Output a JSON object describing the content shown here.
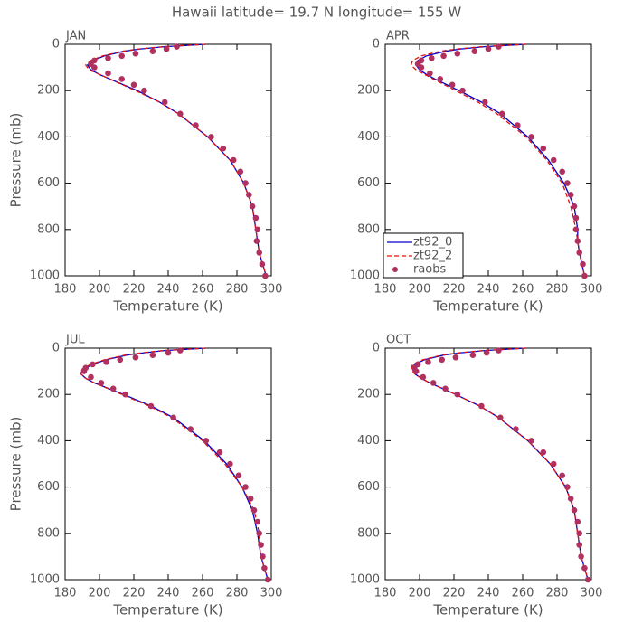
{
  "title": "Hawaii  latitude= 19.7 N longitude= 155 W",
  "chart_data": [
    {
      "type": "line",
      "label": "JAN",
      "x_label": "Temperature (K)",
      "y_label": "Pressure (mb)",
      "xlim": [
        180,
        300
      ],
      "xticks": [
        180,
        200,
        220,
        240,
        260,
        280,
        300
      ],
      "ylim": [
        1000,
        0
      ],
      "yticks": [
        0,
        200,
        400,
        600,
        800,
        1000
      ],
      "series": [
        {
          "color": "#0000c8",
          "line_style": "solid",
          "x": [
            262,
            250,
            238,
            224,
            214,
            203,
            196,
            193,
            195,
            200,
            206,
            222,
            235,
            246,
            263,
            276,
            284,
            289,
            291,
            292,
            293,
            297
          ],
          "y": [
            0,
            5,
            10,
            20,
            30,
            50,
            70,
            90,
            110,
            130,
            150,
            200,
            250,
            300,
            400,
            500,
            600,
            700,
            800,
            850,
            900,
            1000
          ]
        },
        {
          "color": "#e01010",
          "line_style": "dashed",
          "x": [
            262,
            249,
            237,
            223,
            213,
            202,
            195,
            192,
            194,
            200,
            206,
            221,
            235,
            246,
            263,
            276,
            284,
            289,
            291,
            292,
            293,
            297
          ],
          "y": [
            0,
            5,
            10,
            20,
            30,
            50,
            70,
            90,
            110,
            130,
            150,
            200,
            250,
            300,
            400,
            500,
            600,
            700,
            800,
            850,
            900,
            1000
          ]
        },
        {
          "color": "#b03060",
          "line_style": "markers",
          "x": [
            245,
            239,
            231,
            221,
            213,
            205,
            197,
            195,
            197,
            205,
            213,
            220,
            226,
            238,
            247,
            256,
            265,
            272,
            278,
            282,
            285,
            287,
            289,
            291,
            292,
            291.5,
            293,
            294.7,
            296.5
          ],
          "y": [
            10,
            20,
            30,
            40,
            50,
            60,
            70,
            85,
            100,
            125,
            150,
            175,
            200,
            250,
            300,
            350,
            400,
            450,
            500,
            550,
            600,
            650,
            700,
            750,
            800,
            850,
            900,
            950,
            1000
          ]
        }
      ]
    },
    {
      "type": "line",
      "label": "APR",
      "x_label": "Temperature (K)",
      "legend": "lower left",
      "xlim": [
        180,
        300
      ],
      "xticks": [
        180,
        200,
        220,
        240,
        260,
        280,
        300
      ],
      "ylim": [
        1000,
        0
      ],
      "yticks": [
        0,
        200,
        400,
        600,
        800,
        1000
      ],
      "series": [
        {
          "name": "zt92_0",
          "color": "#0000c8",
          "line_style": "solid",
          "x": [
            262,
            250,
            238,
            224,
            215,
            204,
            199,
            198,
            200,
            204,
            209,
            223,
            236,
            247,
            263,
            275,
            284,
            290,
            292,
            292,
            293,
            296
          ],
          "y": [
            0,
            5,
            10,
            20,
            30,
            50,
            70,
            90,
            110,
            130,
            150,
            200,
            250,
            300,
            400,
            500,
            600,
            700,
            800,
            850,
            900,
            1000
          ]
        },
        {
          "name": "zt92_2",
          "color": "#e01010",
          "line_style": "dashed",
          "x": [
            262,
            249,
            236,
            222,
            212,
            201,
            196,
            195,
            198,
            203,
            208,
            221,
            234,
            245,
            262,
            274,
            283,
            288,
            291,
            292,
            293,
            296
          ],
          "y": [
            0,
            5,
            10,
            20,
            30,
            50,
            70,
            90,
            110,
            130,
            150,
            200,
            250,
            300,
            400,
            500,
            600,
            700,
            800,
            850,
            900,
            1000
          ]
        },
        {
          "name": "raobs",
          "color": "#b03060",
          "line_style": "markers",
          "x": [
            246,
            240,
            232,
            222,
            214,
            207,
            201,
            199,
            201,
            206,
            212,
            219,
            225,
            238,
            248,
            257,
            265,
            272,
            278,
            283,
            286,
            288,
            290,
            291,
            291,
            292,
            293,
            295,
            296
          ],
          "y": [
            10,
            20,
            30,
            40,
            50,
            60,
            70,
            85,
            100,
            125,
            150,
            175,
            200,
            250,
            300,
            350,
            400,
            450,
            500,
            550,
            600,
            650,
            700,
            750,
            800,
            850,
            900,
            950,
            1000
          ]
        }
      ]
    },
    {
      "type": "line",
      "label": "JUL",
      "x_label": "Temperature (K)",
      "y_label": "Pressure (mb)",
      "xlim": [
        180,
        300
      ],
      "xticks": [
        180,
        200,
        220,
        240,
        260,
        280,
        300
      ],
      "ylim": [
        1000,
        0
      ],
      "yticks": [
        0,
        200,
        400,
        600,
        800,
        1000
      ],
      "series": [
        {
          "color": "#0000c8",
          "line_style": "solid",
          "x": [
            262,
            250,
            238,
            226,
            216,
            204,
            196,
            191,
            189,
            192,
            197,
            214,
            230,
            243,
            261,
            274,
            283,
            289,
            292,
            293,
            294,
            298
          ],
          "y": [
            0,
            5,
            10,
            20,
            30,
            50,
            70,
            90,
            110,
            130,
            150,
            200,
            250,
            300,
            400,
            500,
            600,
            700,
            800,
            850,
            900,
            1000
          ]
        },
        {
          "color": "#e01010",
          "line_style": "dashed",
          "x": [
            262,
            249,
            237,
            225,
            215,
            203,
            195,
            190,
            189,
            192,
            197,
            213,
            229,
            242,
            260,
            273,
            283,
            290,
            293,
            293,
            294,
            298
          ],
          "y": [
            0,
            5,
            10,
            20,
            30,
            50,
            70,
            90,
            110,
            130,
            150,
            200,
            250,
            300,
            400,
            500,
            600,
            700,
            800,
            850,
            900,
            1000
          ]
        },
        {
          "color": "#b03060",
          "line_style": "markers",
          "x": [
            247,
            240,
            231,
            221,
            212,
            204,
            196,
            192,
            191,
            195,
            201,
            208,
            215,
            230,
            243,
            253,
            262,
            270,
            276,
            281,
            285,
            288,
            290,
            292,
            293,
            294,
            295,
            296,
            298
          ],
          "y": [
            10,
            20,
            30,
            40,
            50,
            60,
            70,
            85,
            100,
            125,
            150,
            175,
            200,
            250,
            300,
            350,
            400,
            450,
            500,
            550,
            600,
            650,
            700,
            750,
            800,
            850,
            900,
            950,
            1000
          ]
        }
      ]
    },
    {
      "type": "line",
      "label": "OCT",
      "x_label": "Temperature (K)",
      "xlim": [
        180,
        300
      ],
      "xticks": [
        180,
        200,
        220,
        240,
        260,
        280,
        300
      ],
      "ylim": [
        1000,
        0
      ],
      "yticks": [
        0,
        200,
        400,
        600,
        800,
        1000
      ],
      "series": [
        {
          "color": "#0000c8",
          "line_style": "solid",
          "x": [
            262,
            250,
            238,
            224,
            214,
            203,
            197,
            196,
            197,
            201,
            206,
            221,
            235,
            246,
            263,
            276,
            285,
            290,
            292,
            293,
            294,
            298
          ],
          "y": [
            0,
            5,
            10,
            20,
            30,
            50,
            70,
            90,
            110,
            130,
            150,
            200,
            250,
            300,
            400,
            500,
            600,
            700,
            800,
            850,
            900,
            1000
          ]
        },
        {
          "color": "#e01010",
          "line_style": "dashed",
          "x": [
            262,
            249,
            237,
            223,
            213,
            202,
            196,
            195,
            197,
            201,
            206,
            221,
            235,
            246,
            263,
            276,
            285,
            290,
            292,
            293,
            294,
            298
          ],
          "y": [
            0,
            5,
            10,
            20,
            30,
            50,
            70,
            90,
            110,
            130,
            150,
            200,
            250,
            300,
            400,
            500,
            600,
            700,
            800,
            850,
            900,
            1000
          ]
        },
        {
          "color": "#b03060",
          "line_style": "markers",
          "x": [
            246,
            239,
            231,
            221,
            213,
            205,
            199,
            197,
            198,
            202,
            208,
            215,
            222,
            236,
            247,
            256,
            265,
            272,
            278,
            283,
            286,
            288,
            290,
            292,
            293,
            293,
            294,
            296,
            298
          ],
          "y": [
            10,
            20,
            30,
            40,
            50,
            60,
            70,
            85,
            100,
            125,
            150,
            175,
            200,
            250,
            300,
            350,
            400,
            450,
            500,
            550,
            600,
            650,
            700,
            750,
            800,
            850,
            900,
            950,
            1000
          ]
        }
      ]
    }
  ]
}
